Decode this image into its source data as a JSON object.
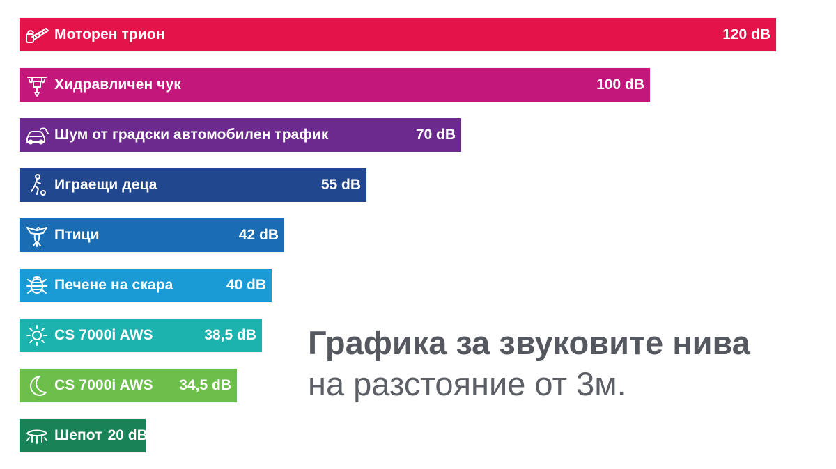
{
  "chart_data": {
    "type": "bar",
    "orientation": "horizontal",
    "title": "Графика за звуковите нива",
    "subtitle": "на разстояние от 3м.",
    "unit": "dB",
    "categories": [
      "Моторен трион",
      "Хидравличен чук",
      "Шум от градски автомобилен трафик",
      "Играещи деца",
      "Птици",
      "Печене на скара",
      "CS 7000i AWS",
      "CS 7000i AWS",
      "Шепот"
    ],
    "values": [
      120,
      100,
      70,
      55,
      42,
      40,
      38.5,
      34.5,
      20
    ],
    "value_labels": [
      "120 dB",
      "100 dB",
      "70 dB",
      "55 dB",
      "42 dB",
      "40 dB",
      "38,5 dB",
      "34,5 dB",
      "20 dB"
    ],
    "icons": [
      "chainsaw-icon",
      "jackhammer-icon",
      "car-traffic-icon",
      "playing-child-icon",
      "bird-icon",
      "grill-icon",
      "sun-icon",
      "moon-icon",
      "whisper-icon"
    ],
    "colors": [
      "#e4144a",
      "#c4177b",
      "#6c2a8e",
      "#21488e",
      "#1a6db3",
      "#1a9bd6",
      "#1cb2ae",
      "#6cbf4b",
      "#178356"
    ],
    "grid": false,
    "legend": "none"
  }
}
